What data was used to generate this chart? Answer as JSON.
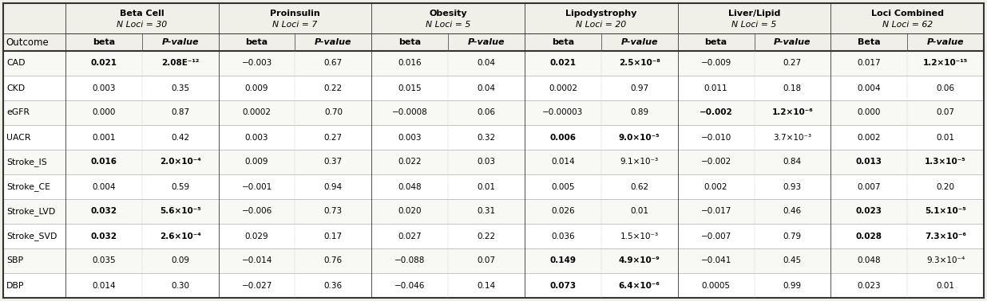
{
  "groups": [
    {
      "label": "Beta Cell",
      "loci": "N Loci = 30"
    },
    {
      "label": "Proinsulin",
      "loci": "N Loci = 7"
    },
    {
      "label": "Obesity",
      "loci": "N Loci = 5"
    },
    {
      "label": "Lipodystrophy",
      "loci": "N Loci = 20"
    },
    {
      "label": "Liver/Lipid",
      "loci": "N Loci = 5"
    },
    {
      "label": "Loci Combined",
      "loci": "N Loci = 62"
    }
  ],
  "sub_headers": [
    "beta",
    "P-value",
    "beta",
    "P-value",
    "beta",
    "P-value",
    "beta",
    "P-value",
    "beta",
    "P-value",
    "Beta",
    "P-value"
  ],
  "rows": [
    {
      "outcome": "CAD",
      "cells": [
        "0.021",
        "2.08E⁻¹²",
        "−0.003",
        "0.67",
        "0.016",
        "0.04",
        "0.021",
        "2.5×10⁻⁸",
        "−0.009",
        "0.27",
        "0.017",
        "1.2×10⁻¹⁵"
      ],
      "bold": [
        true,
        true,
        false,
        false,
        false,
        false,
        true,
        true,
        false,
        false,
        false,
        true
      ]
    },
    {
      "outcome": "CKD",
      "cells": [
        "0.003",
        "0.35",
        "0.009",
        "0.22",
        "0.015",
        "0.04",
        "0.0002",
        "0.97",
        "0.011",
        "0.18",
        "0.004",
        "0.06"
      ],
      "bold": [
        false,
        false,
        false,
        false,
        false,
        false,
        false,
        false,
        false,
        false,
        false,
        false
      ]
    },
    {
      "outcome": "eGFR",
      "cells": [
        "0.000",
        "0.87",
        "0.0002",
        "0.70",
        "−0.0008",
        "0.06",
        "−0.00003",
        "0.89",
        "−0.002",
        "1.2×10⁻⁶",
        "0.000",
        "0.07"
      ],
      "bold": [
        false,
        false,
        false,
        false,
        false,
        false,
        false,
        false,
        true,
        true,
        false,
        false
      ]
    },
    {
      "outcome": "UACR",
      "cells": [
        "0.001",
        "0.42",
        "0.003",
        "0.27",
        "0.003",
        "0.32",
        "0.006",
        "9.0×10⁻⁵",
        "−0.010",
        "3.7×10⁻³",
        "0.002",
        "0.01"
      ],
      "bold": [
        false,
        false,
        false,
        false,
        false,
        false,
        true,
        true,
        false,
        false,
        false,
        false
      ]
    },
    {
      "outcome": "Stroke_IS",
      "cells": [
        "0.016",
        "2.0×10⁻⁴",
        "0.009",
        "0.37",
        "0.022",
        "0.03",
        "0.014",
        "9.1×10⁻³",
        "−0.002",
        "0.84",
        "0.013",
        "1.3×10⁻⁵"
      ],
      "bold": [
        true,
        true,
        false,
        false,
        false,
        false,
        false,
        false,
        false,
        false,
        true,
        true
      ]
    },
    {
      "outcome": "Stroke_CE",
      "cells": [
        "0.004",
        "0.59",
        "−0.001",
        "0.94",
        "0.048",
        "0.01",
        "0.005",
        "0.62",
        "0.002",
        "0.93",
        "0.007",
        "0.20"
      ],
      "bold": [
        false,
        false,
        false,
        false,
        false,
        false,
        false,
        false,
        false,
        false,
        false,
        false
      ]
    },
    {
      "outcome": "Stroke_LVD",
      "cells": [
        "0.032",
        "5.6×10⁻⁵",
        "−0.006",
        "0.73",
        "0.020",
        "0.31",
        "0.026",
        "0.01",
        "−0.017",
        "0.46",
        "0.023",
        "5.1×10⁻⁵"
      ],
      "bold": [
        true,
        true,
        false,
        false,
        false,
        false,
        false,
        false,
        false,
        false,
        true,
        true
      ]
    },
    {
      "outcome": "Stroke_SVD",
      "cells": [
        "0.032",
        "2.6×10⁻⁴",
        "0.029",
        "0.17",
        "0.027",
        "0.22",
        "0.036",
        "1.5×10⁻³",
        "−0.007",
        "0.79",
        "0.028",
        "7.3×10⁻⁶"
      ],
      "bold": [
        true,
        true,
        false,
        false,
        false,
        false,
        false,
        false,
        false,
        false,
        true,
        true
      ]
    },
    {
      "outcome": "SBP",
      "cells": [
        "0.035",
        "0.09",
        "−0.014",
        "0.76",
        "−0.088",
        "0.07",
        "0.149",
        "4.9×10⁻⁹",
        "−0.041",
        "0.45",
        "0.048",
        "9.3×10⁻⁴"
      ],
      "bold": [
        false,
        false,
        false,
        false,
        false,
        false,
        true,
        true,
        false,
        false,
        false,
        false
      ]
    },
    {
      "outcome": "DBP",
      "cells": [
        "0.014",
        "0.30",
        "−0.027",
        "0.36",
        "−0.046",
        "0.14",
        "0.073",
        "6.4×10⁻⁶",
        "0.0005",
        "0.99",
        "0.023",
        "0.01"
      ],
      "bold": [
        false,
        false,
        false,
        false,
        false,
        false,
        true,
        true,
        false,
        false,
        false,
        false
      ]
    }
  ],
  "bg_color": "#f0efe8",
  "line_color": "#333333",
  "thick_lw": 1.5,
  "thin_lw": 0.6,
  "dashed_lw": 0.5
}
